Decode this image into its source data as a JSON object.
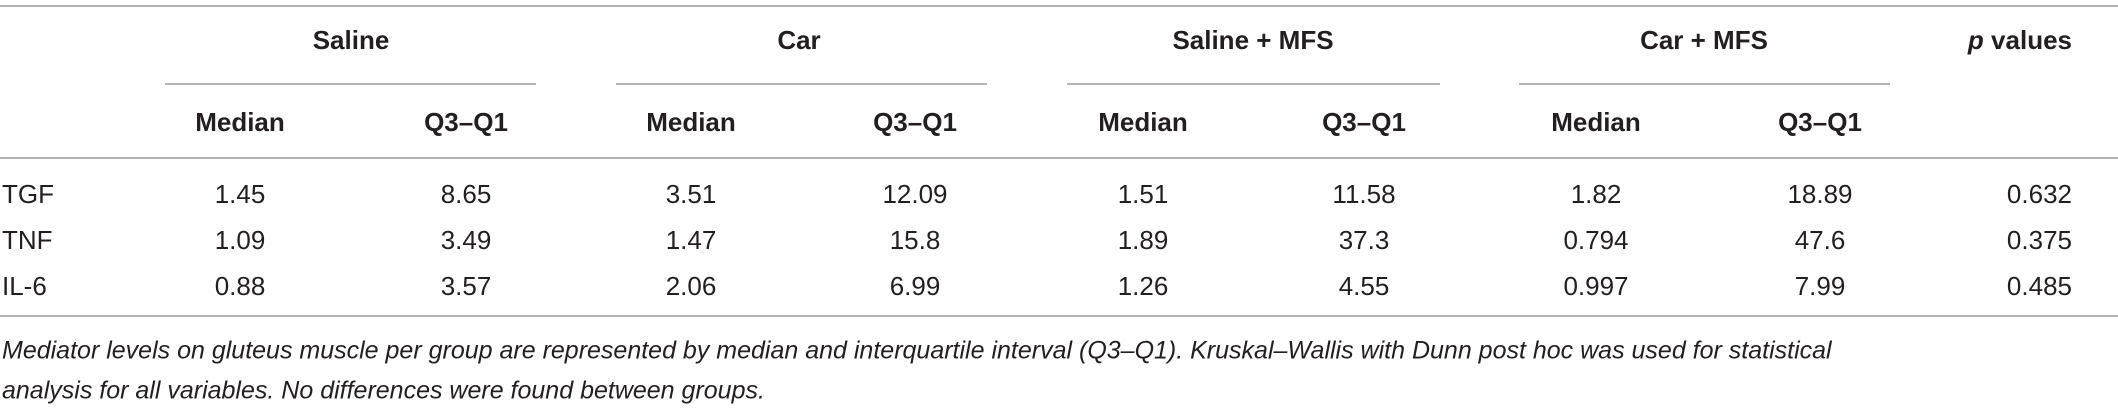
{
  "table": {
    "groups": [
      "Saline",
      "Car",
      "Saline + MFS",
      "Car + MFS"
    ],
    "pvalue_header": {
      "symbol": "p",
      "text": "values"
    },
    "subheaders": [
      "Median",
      "Q3–Q1",
      "Median",
      "Q3–Q1",
      "Median",
      "Q3–Q1",
      "Median",
      "Q3–Q1"
    ],
    "rows": [
      [
        "TGF",
        "1.45",
        "8.65",
        "3.51",
        "12.09",
        "1.51",
        "11.58",
        "1.82",
        "18.89",
        "0.632"
      ],
      [
        "TNF",
        "1.09",
        "3.49",
        "1.47",
        "15.8",
        "1.89",
        "37.3",
        "0.794",
        "47.6",
        "0.375"
      ],
      [
        "IL-6",
        "0.88",
        "3.57",
        "2.06",
        "6.99",
        "1.26",
        "4.55",
        "0.997",
        "7.99",
        "0.485"
      ]
    ]
  },
  "footnote": [
    "Mediator levels on gluteus muscle per group are represented by median and interquartile interval (Q3–Q1). Kruskal–Wallis with Dunn post hoc was used for statistical",
    "analysis for all variables. No differences were found between groups."
  ]
}
